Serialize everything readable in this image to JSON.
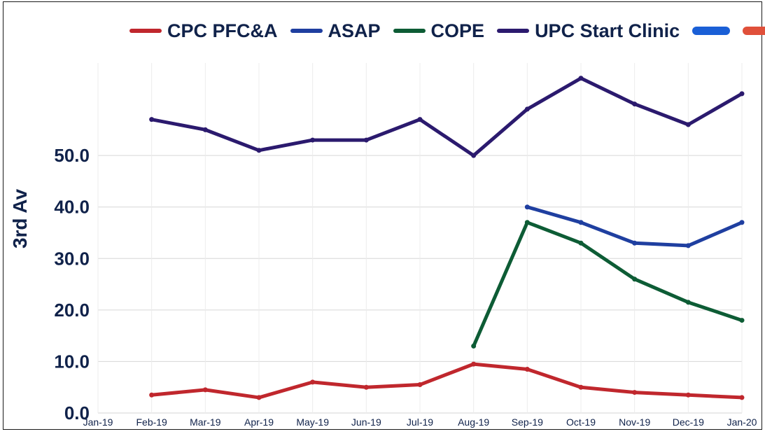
{
  "chart_data": {
    "type": "line",
    "title": "",
    "ylabel": "3rd Av",
    "xlabel": "",
    "ylim": [
      0,
      70
    ],
    "yticks": [
      "0.0",
      "10.0",
      "20.0",
      "30.0",
      "40.0",
      "50.0"
    ],
    "x": [
      "Jan-19",
      "Feb-19",
      "Mar-19",
      "Apr-19",
      "May-19",
      "Jun-19",
      "Jul-19",
      "Aug-19",
      "Sep-19",
      "Oct-19",
      "Nov-19",
      "Dec-19",
      "Jan-20"
    ],
    "legend_position": "top",
    "series": [
      {
        "name": "CPC PFC&A",
        "color": "#c0272d",
        "values": [
          null,
          3.5,
          4.5,
          3.0,
          6.0,
          5.0,
          5.5,
          9.5,
          8.5,
          5.0,
          4.0,
          3.5,
          3.0
        ]
      },
      {
        "name": "ASAP",
        "color": "#1f3fa0",
        "values": [
          null,
          null,
          null,
          null,
          null,
          null,
          null,
          null,
          40.0,
          37.0,
          33.0,
          32.5,
          37.0
        ]
      },
      {
        "name": "COPE",
        "color": "#0d5c35",
        "values": [
          null,
          null,
          null,
          null,
          null,
          null,
          null,
          13.0,
          37.0,
          33.0,
          26.0,
          21.5,
          18.0
        ]
      },
      {
        "name": "UPC Start Clinic",
        "color": "#2b1a6e",
        "values": [
          null,
          57.0,
          55.0,
          51.0,
          53.0,
          53.0,
          57.0,
          50.0,
          59.0,
          65.0,
          60.0,
          56.0,
          62.0
        ]
      }
    ],
    "extra_legend_swatches": [
      "#1a5fd6",
      "#e0503a"
    ]
  }
}
